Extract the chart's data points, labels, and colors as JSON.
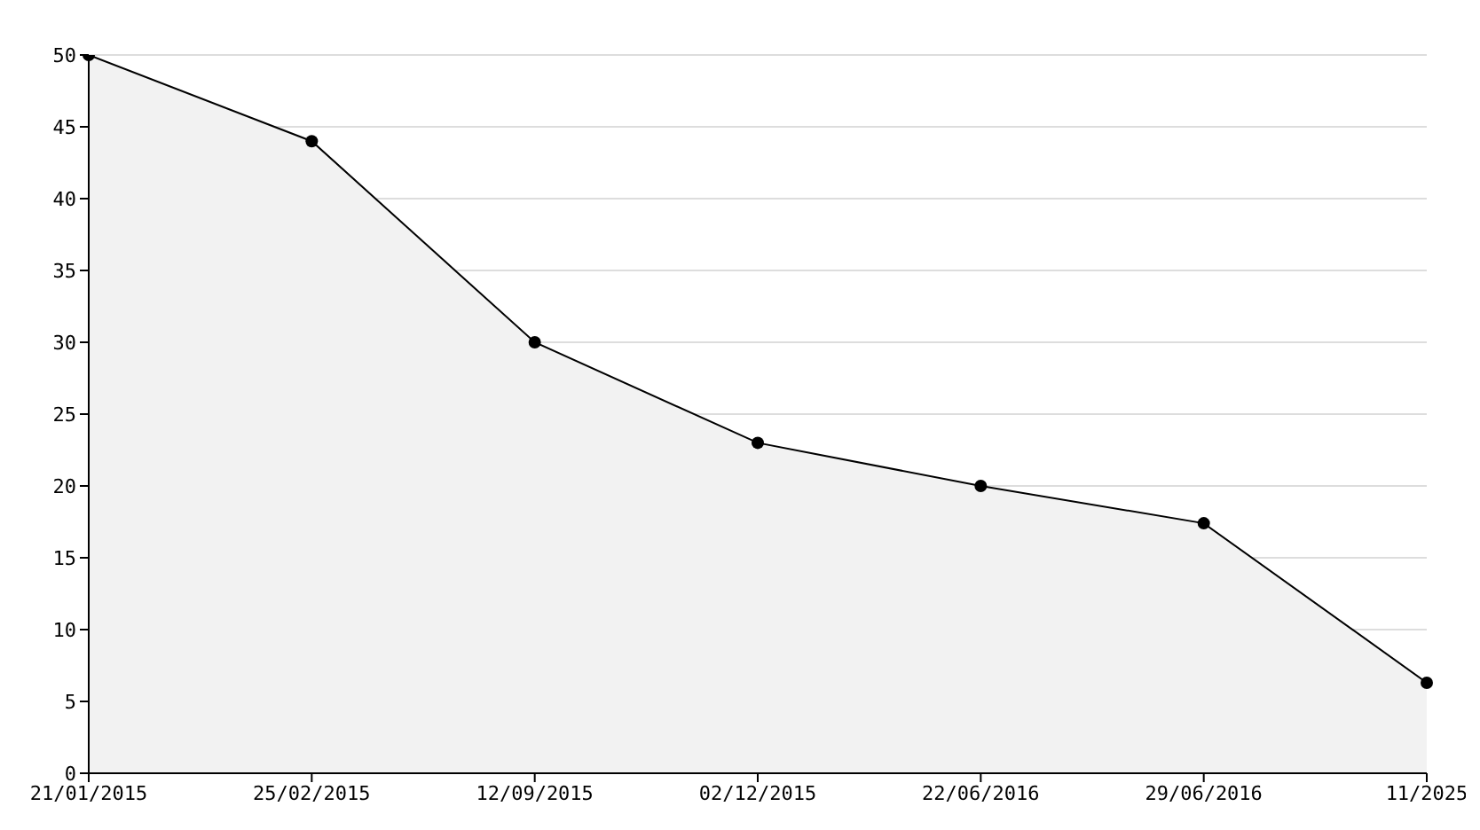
{
  "chart_data": {
    "type": "area",
    "categories": [
      "21/01/2015",
      "25/02/2015",
      "12/09/2015",
      "02/12/2015",
      "22/06/2016",
      "29/06/2016",
      "11/2025"
    ],
    "series": [
      {
        "color": "#000000",
        "values": [
          50,
          44,
          30,
          23,
          20,
          17.4,
          6.3
        ]
      }
    ],
    "ylim": [
      0,
      50
    ],
    "yticks": [
      0,
      5,
      10,
      15,
      20,
      25,
      30,
      35,
      40,
      45,
      50
    ],
    "grid": "y",
    "marker": "circle",
    "line_style": "solid"
  }
}
